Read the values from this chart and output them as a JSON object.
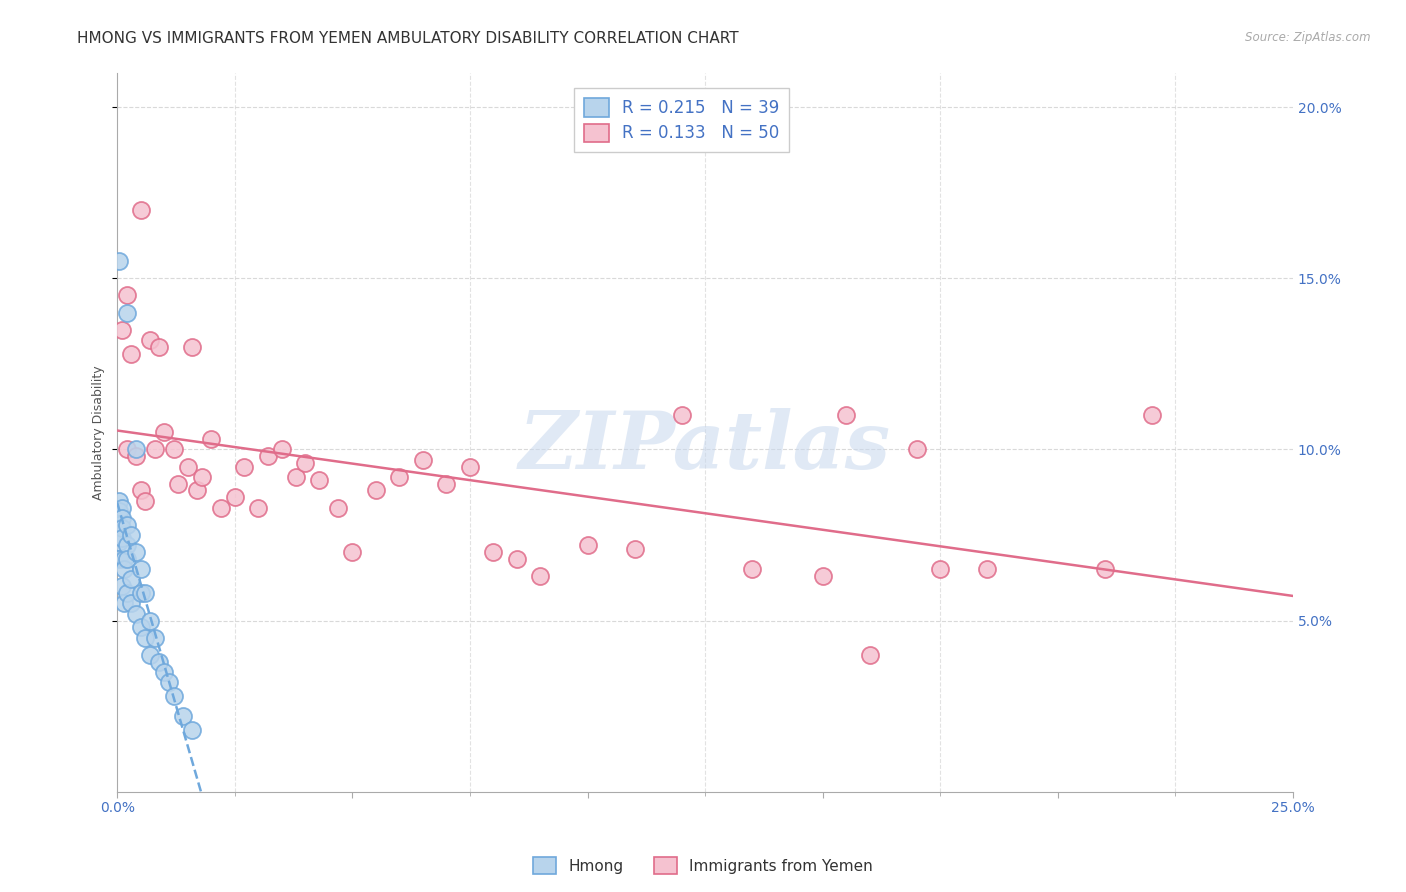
{
  "title": "HMONG VS IMMIGRANTS FROM YEMEN AMBULATORY DISABILITY CORRELATION CHART",
  "source": "Source: ZipAtlas.com",
  "ylabel": "Ambulatory Disability",
  "watermark": "ZIPatlas",
  "xlim": [
    0.0,
    0.25
  ],
  "ylim": [
    0.0,
    0.21
  ],
  "xticks_major": [
    0.0,
    0.05,
    0.1,
    0.15,
    0.2,
    0.25
  ],
  "xticks_minor": [
    0.0,
    0.025,
    0.05,
    0.075,
    0.1,
    0.125,
    0.15,
    0.175,
    0.2,
    0.225,
    0.25
  ],
  "yticks": [
    0.05,
    0.1,
    0.15,
    0.2
  ],
  "hmong_R": 0.215,
  "hmong_N": 39,
  "yemen_R": 0.133,
  "yemen_N": 50,
  "hmong_color": "#6fa8dc",
  "hmong_fill": "#b8d4ec",
  "yemen_color": "#e06c8a",
  "yemen_fill": "#f5c2d0",
  "hmong_x": [
    0.0005,
    0.0005,
    0.0005,
    0.0005,
    0.0005,
    0.001,
    0.001,
    0.001,
    0.001,
    0.001,
    0.0015,
    0.0015,
    0.0015,
    0.002,
    0.002,
    0.002,
    0.002,
    0.003,
    0.003,
    0.003,
    0.004,
    0.004,
    0.005,
    0.005,
    0.005,
    0.006,
    0.006,
    0.007,
    0.007,
    0.008,
    0.009,
    0.01,
    0.011,
    0.012,
    0.014,
    0.016,
    0.0005,
    0.004,
    0.002
  ],
  "hmong_y": [
    0.085,
    0.082,
    0.078,
    0.073,
    0.068,
    0.083,
    0.08,
    0.077,
    0.074,
    0.06,
    0.068,
    0.065,
    0.055,
    0.078,
    0.072,
    0.068,
    0.058,
    0.075,
    0.062,
    0.055,
    0.07,
    0.052,
    0.065,
    0.058,
    0.048,
    0.058,
    0.045,
    0.05,
    0.04,
    0.045,
    0.038,
    0.035,
    0.032,
    0.028,
    0.022,
    0.018,
    0.155,
    0.1,
    0.14
  ],
  "yemen_x": [
    0.001,
    0.002,
    0.002,
    0.003,
    0.004,
    0.005,
    0.005,
    0.006,
    0.007,
    0.008,
    0.009,
    0.01,
    0.012,
    0.013,
    0.015,
    0.016,
    0.017,
    0.018,
    0.02,
    0.022,
    0.025,
    0.027,
    0.03,
    0.032,
    0.035,
    0.038,
    0.04,
    0.043,
    0.047,
    0.05,
    0.055,
    0.06,
    0.065,
    0.07,
    0.075,
    0.08,
    0.085,
    0.09,
    0.1,
    0.11,
    0.12,
    0.135,
    0.15,
    0.155,
    0.16,
    0.17,
    0.175,
    0.185,
    0.21,
    0.22
  ],
  "yemen_y": [
    0.135,
    0.145,
    0.1,
    0.128,
    0.098,
    0.17,
    0.088,
    0.085,
    0.132,
    0.1,
    0.13,
    0.105,
    0.1,
    0.09,
    0.095,
    0.13,
    0.088,
    0.092,
    0.103,
    0.083,
    0.086,
    0.095,
    0.083,
    0.098,
    0.1,
    0.092,
    0.096,
    0.091,
    0.083,
    0.07,
    0.088,
    0.092,
    0.097,
    0.09,
    0.095,
    0.07,
    0.068,
    0.063,
    0.072,
    0.071,
    0.11,
    0.065,
    0.063,
    0.11,
    0.04,
    0.1,
    0.065,
    0.065,
    0.065,
    0.11
  ],
  "background_color": "#ffffff",
  "grid_color": "#d0d0d0",
  "title_fontsize": 11,
  "axis_fontsize": 9,
  "tick_color": "#4472c4"
}
